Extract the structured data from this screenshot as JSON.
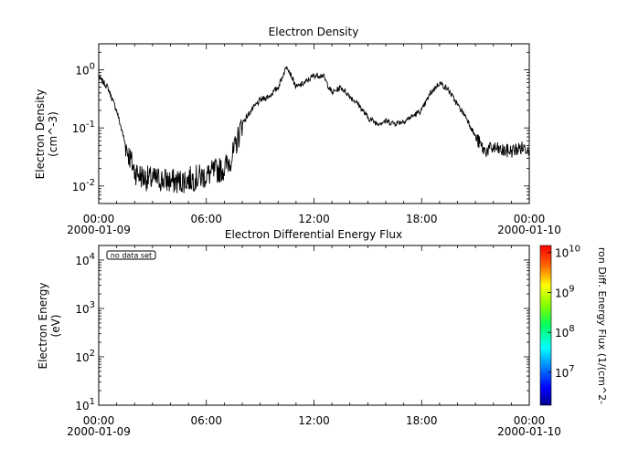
{
  "chart_data": [
    {
      "type": "line",
      "title": "Electron Density",
      "ylabel_line1": "Electron Density",
      "ylabel_line2": "(cm^-3)",
      "yscale": "log",
      "ylim": [
        0.005,
        2.8
      ],
      "yticks": [
        {
          "value": 0.01,
          "base": "10",
          "exp": "-2"
        },
        {
          "value": 0.1,
          "base": "10",
          "exp": "-1"
        },
        {
          "value": 1,
          "base": "10",
          "exp": "0"
        }
      ],
      "xlim": [
        "2000-01-09T00:00",
        "2000-01-10T00:00"
      ],
      "xticks": [
        {
          "time": "00:00",
          "date": "2000-01-09"
        },
        {
          "time": "06:00",
          "date": ""
        },
        {
          "time": "12:00",
          "date": ""
        },
        {
          "time": "18:00",
          "date": ""
        },
        {
          "time": "00:00",
          "date": "2000-01-10"
        }
      ],
      "series": [
        {
          "x": [
            "00:00",
            "00:30",
            "01:00",
            "01:30",
            "02:00",
            "02:30",
            "03:00",
            "03:30",
            "04:00",
            "04:30",
            "05:00",
            "05:30",
            "06:00",
            "06:30",
            "07:00",
            "07:30",
            "08:00",
            "08:30",
            "09:00",
            "09:30",
            "10:00",
            "10:30",
            "11:00",
            "11:30",
            "12:00",
            "12:30",
            "13:00",
            "13:30",
            "14:00",
            "14:30",
            "15:00",
            "15:30",
            "16:00",
            "16:30",
            "17:00",
            "17:30",
            "18:00",
            "18:30",
            "19:00",
            "19:30",
            "20:00",
            "20:30",
            "21:00",
            "21:30",
            "22:00",
            "22:30",
            "23:00",
            "23:30",
            "24:00"
          ],
          "y": [
            0.75,
            0.5,
            0.2,
            0.05,
            0.018,
            0.014,
            0.013,
            0.013,
            0.012,
            0.012,
            0.013,
            0.014,
            0.015,
            0.018,
            0.02,
            0.035,
            0.12,
            0.2,
            0.3,
            0.35,
            0.5,
            1.2,
            0.5,
            0.6,
            0.8,
            0.8,
            0.4,
            0.5,
            0.35,
            0.25,
            0.15,
            0.12,
            0.13,
            0.12,
            0.13,
            0.16,
            0.2,
            0.4,
            0.6,
            0.45,
            0.25,
            0.15,
            0.07,
            0.04,
            0.045,
            0.04,
            0.04,
            0.045,
            0.045
          ]
        }
      ]
    },
    {
      "type": "heatmap",
      "title": "Electron Differential Energy Flux",
      "ylabel_line1": "Electron Energy",
      "ylabel_line2": "(eV)",
      "yscale": "log",
      "ylim": [
        10,
        20000
      ],
      "yticks": [
        {
          "value": 10,
          "base": "10",
          "exp": "1"
        },
        {
          "value": 100,
          "base": "10",
          "exp": "2"
        },
        {
          "value": 1000,
          "base": "10",
          "exp": "3"
        },
        {
          "value": 10000,
          "base": "10",
          "exp": "4"
        }
      ],
      "xlim": [
        "2000-01-09T00:00",
        "2000-01-10T00:00"
      ],
      "xticks": [
        {
          "time": "00:00",
          "date": "2000-01-09"
        },
        {
          "time": "06:00",
          "date": ""
        },
        {
          "time": "12:00",
          "date": ""
        },
        {
          "time": "18:00",
          "date": ""
        },
        {
          "time": "00:00",
          "date": "2000-01-10"
        }
      ],
      "annotation": "no data set",
      "colorbar": {
        "label": "ron Diff. Energy Flux (1/(cm^2-",
        "scale": "log",
        "range": [
          1500000,
          15000000000
        ],
        "ticks": [
          {
            "value": 10000000,
            "base": "10",
            "exp": "7"
          },
          {
            "value": 100000000,
            "base": "10",
            "exp": "8"
          },
          {
            "value": 1000000000,
            "base": "10",
            "exp": "9"
          },
          {
            "value": 10000000000,
            "base": "10",
            "exp": "10"
          }
        ]
      }
    }
  ]
}
